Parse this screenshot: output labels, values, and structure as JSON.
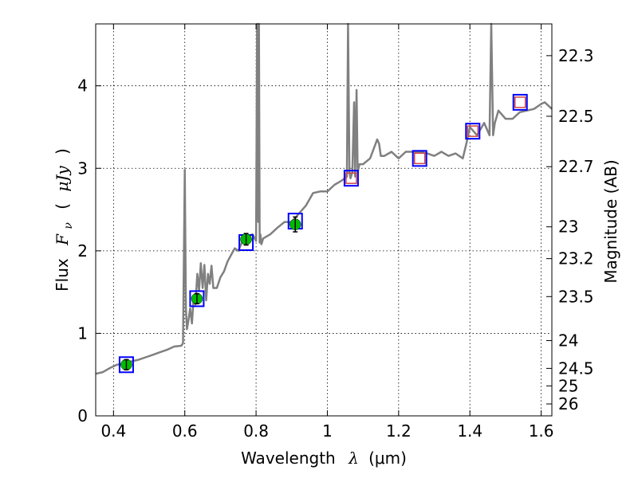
{
  "chart_data": {
    "type": "line",
    "title": "",
    "xlabel": {
      "text": "Wavelength",
      "symbol": "λ",
      "unit": "(μm)"
    },
    "ylabel": {
      "text": "Flux",
      "symbol": "F",
      "subscript": "ν",
      "unit_open": "(",
      "unit": "μJy",
      "unit_close": ")"
    },
    "y2label": "Magnitude (AB)",
    "xlim": [
      0.35,
      1.63
    ],
    "ylim": [
      0,
      4.75
    ],
    "grid": true,
    "x_ticks": [
      "0.4",
      "0.6",
      "0.8",
      "1",
      "1.2",
      "1.4",
      "1.6"
    ],
    "y_ticks": [
      "0",
      "1",
      "2",
      "3",
      "4"
    ],
    "mag_ticks": [
      "22.3",
      "22.5",
      "22.7",
      "23",
      "23.2",
      "23.5",
      "24",
      "24.5",
      "25",
      "26"
    ],
    "colors": {
      "spectrum": "#808080",
      "model_box": "#0000ff",
      "observed_point": "#00bb00",
      "nir_marker": "#cc4444"
    },
    "spectrum": {
      "x": [
        0.35,
        0.37,
        0.39,
        0.41,
        0.43,
        0.45,
        0.47,
        0.49,
        0.51,
        0.53,
        0.55,
        0.57,
        0.59,
        0.595,
        0.6,
        0.603,
        0.606,
        0.61,
        0.615,
        0.62,
        0.625,
        0.63,
        0.635,
        0.64,
        0.645,
        0.65,
        0.655,
        0.66,
        0.665,
        0.67,
        0.675,
        0.68,
        0.69,
        0.7,
        0.71,
        0.72,
        0.73,
        0.74,
        0.75,
        0.76,
        0.77,
        0.78,
        0.79,
        0.8,
        0.803,
        0.806,
        0.808,
        0.81,
        0.812,
        0.815,
        0.82,
        0.84,
        0.86,
        0.88,
        0.9,
        0.92,
        0.94,
        0.96,
        0.98,
        1.0,
        1.02,
        1.04,
        1.055,
        1.058,
        1.062,
        1.065,
        1.07,
        1.075,
        1.078,
        1.082,
        1.085,
        1.09,
        1.1,
        1.12,
        1.14,
        1.145,
        1.15,
        1.16,
        1.18,
        1.2,
        1.22,
        1.24,
        1.26,
        1.28,
        1.3,
        1.32,
        1.34,
        1.36,
        1.38,
        1.39,
        1.4,
        1.41,
        1.42,
        1.44,
        1.455,
        1.46,
        1.465,
        1.47,
        1.48,
        1.5,
        1.52,
        1.54,
        1.56,
        1.58,
        1.6,
        1.61,
        1.63
      ],
      "y": [
        0.51,
        0.53,
        0.58,
        0.62,
        0.63,
        0.66,
        0.68,
        0.71,
        0.74,
        0.77,
        0.8,
        0.84,
        0.85,
        0.88,
        2.98,
        1.3,
        1.05,
        1.15,
        1.3,
        1.12,
        1.45,
        1.35,
        1.72,
        1.52,
        1.85,
        1.55,
        1.83,
        1.4,
        1.72,
        1.6,
        1.82,
        1.55,
        1.55,
        1.68,
        1.75,
        1.87,
        1.95,
        2.03,
        2.0,
        2.1,
        2.15,
        2.18,
        2.2,
        2.12,
        4.75,
        2.35,
        4.75,
        2.1,
        2.2,
        2.08,
        2.15,
        2.2,
        2.28,
        2.35,
        2.35,
        2.45,
        2.55,
        2.7,
        2.72,
        2.72,
        2.8,
        2.85,
        2.9,
        4.75,
        2.95,
        2.88,
        2.95,
        3.8,
        2.9,
        3.95,
        2.95,
        3.05,
        3.05,
        3.12,
        3.35,
        3.3,
        3.15,
        3.15,
        3.2,
        3.12,
        3.2,
        3.2,
        3.2,
        3.18,
        3.15,
        3.2,
        3.15,
        3.18,
        3.12,
        3.3,
        3.5,
        3.45,
        3.4,
        3.55,
        3.4,
        4.75,
        3.4,
        3.55,
        3.7,
        3.6,
        3.6,
        3.68,
        3.7,
        3.72,
        3.78,
        3.8,
        3.72
      ]
    },
    "model_points": {
      "x": [
        0.436,
        0.634,
        0.772,
        0.91,
        1.067,
        1.259,
        1.408,
        1.541
      ],
      "y": [
        0.62,
        1.42,
        2.1,
        2.36,
        2.88,
        3.12,
        3.45,
        3.8
      ]
    },
    "observed_points": {
      "x": [
        0.436,
        0.634,
        0.772,
        0.91
      ],
      "y": [
        0.62,
        1.42,
        2.14,
        2.32
      ],
      "err": [
        0.06,
        0.06,
        0.07,
        0.09
      ]
    },
    "nir_markers": {
      "x": [
        1.067,
        1.259,
        1.408,
        1.541
      ],
      "y": [
        2.88,
        3.12,
        3.45,
        3.8
      ]
    }
  }
}
